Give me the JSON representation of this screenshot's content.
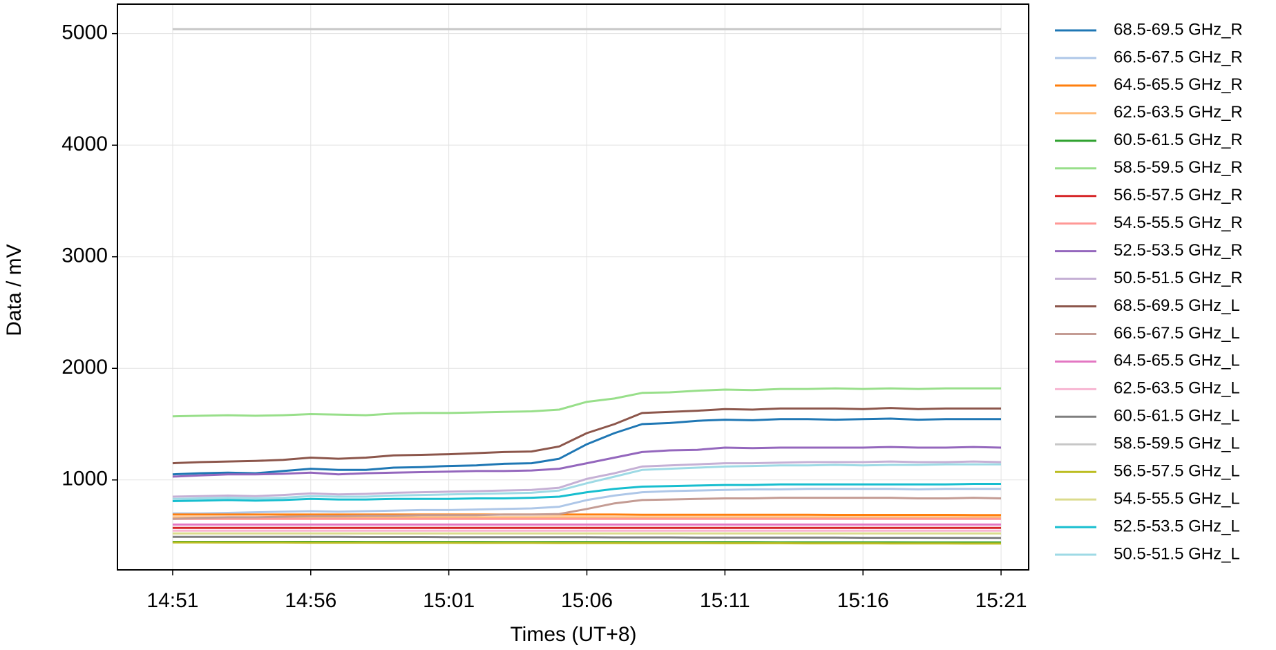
{
  "chart_data": {
    "type": "line",
    "x_label": "Times (UT+8)",
    "y_label": "Data / mV",
    "x": [
      "14:51",
      "14:52",
      "14:53",
      "14:54",
      "14:55",
      "14:56",
      "14:57",
      "14:58",
      "14:59",
      "15:00",
      "15:01",
      "15:02",
      "15:03",
      "15:04",
      "15:05",
      "15:06",
      "15:07",
      "15:08",
      "15:09",
      "15:10",
      "15:11",
      "15:12",
      "15:13",
      "15:14",
      "15:15",
      "15:16",
      "15:17",
      "15:18",
      "15:19",
      "15:20",
      "15:21"
    ],
    "xlim": [
      "14:49",
      "15:22"
    ],
    "xticks": [
      "14:51",
      "14:56",
      "15:01",
      "15:06",
      "15:11",
      "15:16",
      "15:21"
    ],
    "ylim": [
      194,
      5264
    ],
    "yticks": [
      1000,
      2000,
      3000,
      4000,
      5000
    ],
    "grid": true,
    "legend": "outside-right",
    "series": [
      {
        "name": "68.5-69.5 GHz_R",
        "color": "#1f77b4",
        "values": [
          1050,
          1060,
          1065,
          1060,
          1080,
          1100,
          1090,
          1090,
          1110,
          1115,
          1125,
          1130,
          1145,
          1150,
          1190,
          1320,
          1420,
          1500,
          1510,
          1530,
          1540,
          1535,
          1545,
          1545,
          1540,
          1545,
          1550,
          1540,
          1545,
          1545,
          1545
        ]
      },
      {
        "name": "66.5-67.5 GHz_R",
        "color": "#aec7e8",
        "values": [
          700,
          700,
          705,
          710,
          715,
          720,
          715,
          720,
          725,
          730,
          730,
          735,
          740,
          745,
          760,
          820,
          860,
          890,
          900,
          905,
          910,
          915,
          915,
          920,
          920,
          920,
          920,
          915,
          920,
          920,
          920
        ]
      },
      {
        "name": "64.5-65.5 GHz_R",
        "color": "#ff7f0e",
        "values": [
          690,
          690,
          690,
          690,
          690,
          690,
          690,
          690,
          690,
          690,
          690,
          690,
          690,
          690,
          690,
          690,
          690,
          688,
          688,
          688,
          688,
          688,
          688,
          688,
          686,
          686,
          686,
          686,
          686,
          685,
          685
        ]
      },
      {
        "name": "62.5-63.5 GHz_R",
        "color": "#ffbb78",
        "values": [
          665,
          665,
          665,
          665,
          665,
          665,
          665,
          665,
          665,
          665,
          665,
          665,
          665,
          665,
          665,
          665,
          665,
          665,
          665,
          665,
          665,
          665,
          665,
          665,
          665,
          665,
          665,
          665,
          665,
          665,
          665
        ]
      },
      {
        "name": "60.5-61.5 GHz_R",
        "color": "#2ca02c",
        "values": [
          445,
          445,
          445,
          445,
          445,
          445,
          445,
          444,
          444,
          444,
          444,
          444,
          443,
          443,
          443,
          443,
          443,
          442,
          442,
          442,
          442,
          442,
          441,
          441,
          441,
          441,
          441,
          440,
          440,
          440,
          440
        ]
      },
      {
        "name": "58.5-59.5 GHz_R",
        "color": "#98df8a",
        "values": [
          1570,
          1575,
          1580,
          1575,
          1580,
          1590,
          1585,
          1580,
          1595,
          1600,
          1600,
          1605,
          1610,
          1615,
          1630,
          1700,
          1730,
          1780,
          1785,
          1800,
          1810,
          1805,
          1815,
          1815,
          1820,
          1815,
          1820,
          1815,
          1820,
          1820,
          1820
        ]
      },
      {
        "name": "56.5-57.5 GHz_R",
        "color": "#d62728",
        "values": [
          570,
          570,
          570,
          570,
          570,
          570,
          570,
          570,
          570,
          570,
          570,
          570,
          570,
          570,
          570,
          570,
          570,
          570,
          570,
          570,
          570,
          570,
          570,
          570,
          570,
          570,
          570,
          570,
          570,
          570,
          570
        ]
      },
      {
        "name": "54.5-55.5 GHz_R",
        "color": "#ff9896",
        "values": [
          650,
          650,
          650,
          650,
          650,
          650,
          650,
          650,
          650,
          650,
          650,
          650,
          650,
          650,
          650,
          650,
          650,
          650,
          650,
          650,
          650,
          650,
          650,
          650,
          650,
          650,
          650,
          650,
          650,
          650,
          650
        ]
      },
      {
        "name": "52.5-53.5 GHz_R",
        "color": "#9467bd",
        "values": [
          1030,
          1040,
          1050,
          1050,
          1055,
          1065,
          1050,
          1060,
          1065,
          1070,
          1075,
          1080,
          1080,
          1085,
          1100,
          1150,
          1200,
          1250,
          1265,
          1270,
          1290,
          1285,
          1290,
          1290,
          1290,
          1290,
          1295,
          1290,
          1290,
          1295,
          1290
        ]
      },
      {
        "name": "50.5-51.5 GHz_R",
        "color": "#c5b0d5",
        "values": [
          850,
          855,
          860,
          855,
          865,
          880,
          870,
          875,
          885,
          890,
          895,
          900,
          905,
          910,
          930,
          1010,
          1060,
          1120,
          1130,
          1140,
          1150,
          1150,
          1155,
          1160,
          1160,
          1160,
          1165,
          1160,
          1160,
          1165,
          1160
        ]
      },
      {
        "name": "68.5-69.5 GHz_L",
        "color": "#8c564b",
        "values": [
          1150,
          1160,
          1165,
          1170,
          1180,
          1200,
          1190,
          1200,
          1220,
          1225,
          1230,
          1240,
          1250,
          1255,
          1300,
          1420,
          1500,
          1600,
          1610,
          1620,
          1635,
          1630,
          1640,
          1640,
          1640,
          1635,
          1645,
          1635,
          1640,
          1640,
          1640
        ]
      },
      {
        "name": "66.5-67.5 GHz_L",
        "color": "#c49c94",
        "values": [
          650,
          660,
          665,
          665,
          670,
          675,
          675,
          680,
          680,
          685,
          685,
          685,
          690,
          690,
          695,
          740,
          790,
          820,
          825,
          830,
          835,
          835,
          840,
          840,
          840,
          840,
          840,
          835,
          835,
          840,
          835
        ]
      },
      {
        "name": "64.5-65.5 GHz_L",
        "color": "#e377c2",
        "values": [
          600,
          600,
          600,
          600,
          600,
          600,
          600,
          600,
          600,
          600,
          600,
          600,
          600,
          600,
          600,
          600,
          600,
          600,
          600,
          600,
          600,
          600,
          600,
          600,
          600,
          600,
          600,
          600,
          600,
          600,
          600
        ]
      },
      {
        "name": "62.5-63.5 GHz_L",
        "color": "#f7b6d2",
        "values": [
          545,
          545,
          545,
          545,
          545,
          545,
          545,
          545,
          545,
          545,
          545,
          545,
          545,
          545,
          545,
          545,
          545,
          545,
          545,
          545,
          545,
          545,
          545,
          545,
          545,
          545,
          545,
          545,
          545,
          545,
          545
        ]
      },
      {
        "name": "60.5-61.5 GHz_L",
        "color": "#7f7f7f",
        "values": [
          490,
          490,
          490,
          490,
          489,
          489,
          489,
          488,
          488,
          488,
          487,
          487,
          487,
          486,
          486,
          486,
          485,
          485,
          485,
          484,
          484,
          484,
          483,
          483,
          483,
          482,
          482,
          482,
          481,
          481,
          480
        ]
      },
      {
        "name": "58.5-59.5 GHz_L",
        "color": "#c7c7c7",
        "values": [
          5040,
          5040,
          5040,
          5040,
          5040,
          5040,
          5040,
          5040,
          5040,
          5040,
          5040,
          5040,
          5040,
          5040,
          5040,
          5040,
          5040,
          5040,
          5040,
          5040,
          5040,
          5040,
          5040,
          5040,
          5040,
          5040,
          5040,
          5040,
          5040,
          5040,
          5040
        ]
      },
      {
        "name": "56.5-57.5 GHz_L",
        "color": "#bcbd22",
        "values": [
          440,
          440,
          439,
          439,
          439,
          438,
          438,
          438,
          437,
          437,
          437,
          436,
          436,
          436,
          435,
          435,
          435,
          434,
          434,
          434,
          433,
          433,
          433,
          432,
          432,
          432,
          431,
          431,
          431,
          430,
          430
        ]
      },
      {
        "name": "54.5-55.5 GHz_L",
        "color": "#dbdb8d",
        "values": [
          520,
          520,
          520,
          520,
          520,
          520,
          520,
          520,
          520,
          520,
          520,
          520,
          520,
          520,
          520,
          520,
          520,
          520,
          520,
          520,
          520,
          520,
          520,
          520,
          520,
          520,
          520,
          520,
          520,
          520,
          520
        ]
      },
      {
        "name": "52.5-53.5 GHz_L",
        "color": "#17becf",
        "values": [
          810,
          815,
          820,
          815,
          820,
          830,
          825,
          825,
          830,
          830,
          830,
          835,
          835,
          840,
          850,
          890,
          920,
          940,
          945,
          950,
          955,
          955,
          960,
          960,
          960,
          960,
          960,
          960,
          960,
          965,
          965
        ]
      },
      {
        "name": "50.5-51.5 GHz_L",
        "color": "#9edae5",
        "values": [
          830,
          835,
          840,
          835,
          840,
          855,
          850,
          850,
          860,
          865,
          870,
          875,
          880,
          885,
          905,
          970,
          1030,
          1090,
          1100,
          1110,
          1120,
          1125,
          1130,
          1130,
          1135,
          1130,
          1135,
          1135,
          1140,
          1140,
          1140
        ]
      }
    ]
  }
}
